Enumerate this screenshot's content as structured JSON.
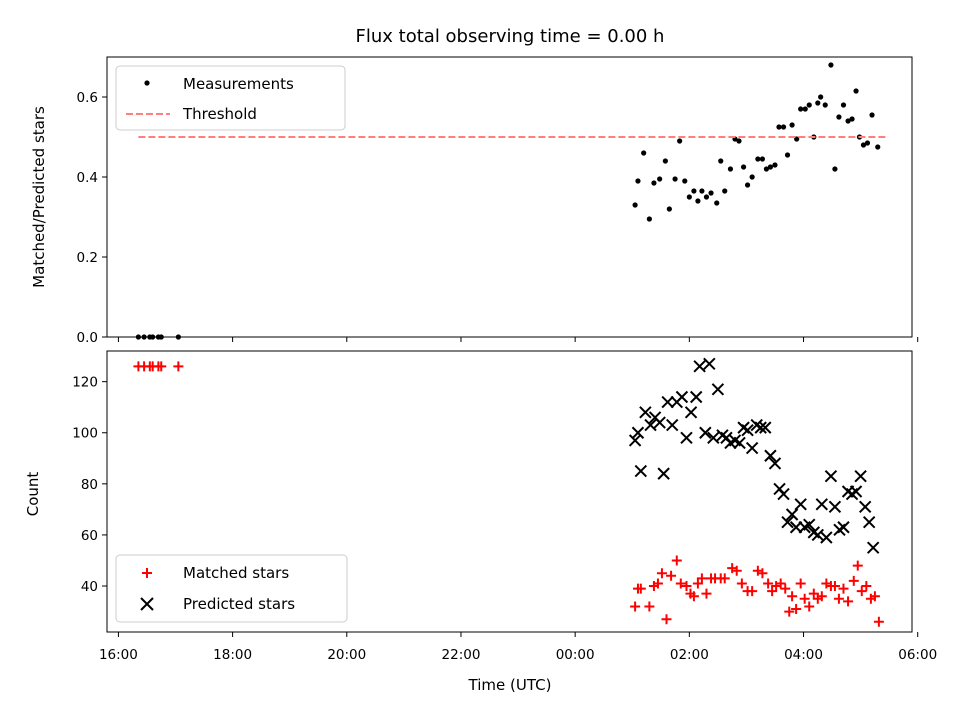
{
  "chart_data": {
    "title": "Flux total observing time = 0.00 h",
    "xlabel": "Time (UTC)",
    "x_tick_labels": [
      "16:00",
      "18:00",
      "20:00",
      "22:00",
      "00:00",
      "02:00",
      "04:00",
      "06:00"
    ],
    "x_range_hours": [
      15.8,
      29.9
    ],
    "panels": [
      {
        "type": "scatter",
        "ylabel": "Matched/Predicted stars",
        "ylim": [
          0.0,
          0.7
        ],
        "yticks": [
          0.0,
          0.2,
          0.4,
          0.6
        ],
        "y_tick_labels": [
          "0.0",
          "0.2",
          "0.4",
          "0.6"
        ],
        "legend_position": "upper-left",
        "series": [
          {
            "name": "Measurements",
            "marker": "dot",
            "color": "#000000",
            "points": [
              [
                16.35,
                0.0
              ],
              [
                16.45,
                0.0
              ],
              [
                16.55,
                0.0
              ],
              [
                16.6,
                0.0
              ],
              [
                16.7,
                0.0
              ],
              [
                16.75,
                0.0
              ],
              [
                17.05,
                0.0
              ],
              [
                25.05,
                0.33
              ],
              [
                25.1,
                0.39
              ],
              [
                25.2,
                0.46
              ],
              [
                25.3,
                0.295
              ],
              [
                25.38,
                0.385
              ],
              [
                25.48,
                0.395
              ],
              [
                25.58,
                0.44
              ],
              [
                25.65,
                0.32
              ],
              [
                25.75,
                0.395
              ],
              [
                25.83,
                0.49
              ],
              [
                25.92,
                0.39
              ],
              [
                26.0,
                0.35
              ],
              [
                26.08,
                0.365
              ],
              [
                26.15,
                0.34
              ],
              [
                26.22,
                0.365
              ],
              [
                26.3,
                0.35
              ],
              [
                26.38,
                0.36
              ],
              [
                26.48,
                0.335
              ],
              [
                26.55,
                0.44
              ],
              [
                26.62,
                0.365
              ],
              [
                26.72,
                0.42
              ],
              [
                26.8,
                0.495
              ],
              [
                26.87,
                0.49
              ],
              [
                26.95,
                0.425
              ],
              [
                27.02,
                0.38
              ],
              [
                27.1,
                0.4
              ],
              [
                27.2,
                0.445
              ],
              [
                27.28,
                0.445
              ],
              [
                27.35,
                0.42
              ],
              [
                27.42,
                0.425
              ],
              [
                27.5,
                0.43
              ],
              [
                27.57,
                0.525
              ],
              [
                27.65,
                0.525
              ],
              [
                27.72,
                0.455
              ],
              [
                27.8,
                0.53
              ],
              [
                27.88,
                0.495
              ],
              [
                27.95,
                0.57
              ],
              [
                28.03,
                0.57
              ],
              [
                28.1,
                0.58
              ],
              [
                28.18,
                0.5
              ],
              [
                28.25,
                0.585
              ],
              [
                28.3,
                0.6
              ],
              [
                28.38,
                0.58
              ],
              [
                28.48,
                0.68
              ],
              [
                28.55,
                0.42
              ],
              [
                28.62,
                0.55
              ],
              [
                28.7,
                0.58
              ],
              [
                28.78,
                0.54
              ],
              [
                28.85,
                0.545
              ],
              [
                28.92,
                0.615
              ],
              [
                28.98,
                0.5
              ],
              [
                29.05,
                0.48
              ],
              [
                29.12,
                0.485
              ],
              [
                29.2,
                0.555
              ],
              [
                29.3,
                0.475
              ]
            ]
          },
          {
            "name": "Threshold",
            "line_style": "dashed",
            "color": "#ff7f7f",
            "x": [
              16.35,
              29.45
            ],
            "y": [
              0.5,
              0.5
            ]
          }
        ]
      },
      {
        "type": "scatter",
        "ylabel": "Count",
        "ylim": [
          22,
          132
        ],
        "yticks": [
          40,
          60,
          80,
          100,
          120
        ],
        "y_tick_labels": [
          "40",
          "60",
          "80",
          "100",
          "120"
        ],
        "legend_position": "lower-left",
        "series": [
          {
            "name": "Matched stars",
            "marker": "plus",
            "color": "#ff0000",
            "points": [
              [
                16.35,
                126
              ],
              [
                16.45,
                126
              ],
              [
                16.55,
                126
              ],
              [
                16.6,
                126
              ],
              [
                16.7,
                126
              ],
              [
                16.75,
                126
              ],
              [
                17.05,
                126
              ],
              [
                25.05,
                32
              ],
              [
                25.1,
                39
              ],
              [
                25.15,
                39
              ],
              [
                25.3,
                32
              ],
              [
                25.38,
                40
              ],
              [
                25.45,
                41
              ],
              [
                25.52,
                45
              ],
              [
                25.6,
                27
              ],
              [
                25.68,
                44
              ],
              [
                25.78,
                50
              ],
              [
                25.85,
                41
              ],
              [
                25.95,
                40
              ],
              [
                26.02,
                37
              ],
              [
                26.08,
                36
              ],
              [
                26.15,
                41
              ],
              [
                26.22,
                43
              ],
              [
                26.3,
                37
              ],
              [
                26.38,
                43
              ],
              [
                26.45,
                43
              ],
              [
                26.55,
                43
              ],
              [
                26.62,
                43
              ],
              [
                26.75,
                47
              ],
              [
                26.83,
                46
              ],
              [
                26.92,
                41
              ],
              [
                27.02,
                38
              ],
              [
                27.1,
                38
              ],
              [
                27.2,
                46
              ],
              [
                27.28,
                45
              ],
              [
                27.38,
                41
              ],
              [
                27.45,
                38
              ],
              [
                27.52,
                40
              ],
              [
                27.6,
                41
              ],
              [
                27.68,
                39
              ],
              [
                27.75,
                30
              ],
              [
                27.8,
                36
              ],
              [
                27.87,
                31
              ],
              [
                27.95,
                41
              ],
              [
                28.02,
                35
              ],
              [
                28.1,
                32
              ],
              [
                28.18,
                37
              ],
              [
                28.25,
                35
              ],
              [
                28.32,
                36
              ],
              [
                28.4,
                41
              ],
              [
                28.48,
                40
              ],
              [
                28.55,
                40
              ],
              [
                28.62,
                35
              ],
              [
                28.7,
                39
              ],
              [
                28.78,
                34
              ],
              [
                28.88,
                42
              ],
              [
                28.95,
                48
              ],
              [
                29.02,
                38
              ],
              [
                29.1,
                40
              ],
              [
                29.18,
                35
              ],
              [
                29.25,
                36
              ],
              [
                29.32,
                26
              ]
            ]
          },
          {
            "name": "Predicted stars",
            "marker": "cross",
            "color": "#000000",
            "points": [
              [
                25.05,
                97
              ],
              [
                25.1,
                100
              ],
              [
                25.15,
                85
              ],
              [
                25.23,
                108
              ],
              [
                25.32,
                103
              ],
              [
                25.4,
                106
              ],
              [
                25.48,
                104
              ],
              [
                25.55,
                84
              ],
              [
                25.62,
                112
              ],
              [
                25.7,
                103
              ],
              [
                25.78,
                112
              ],
              [
                25.87,
                114
              ],
              [
                25.95,
                98
              ],
              [
                26.03,
                108
              ],
              [
                26.12,
                114
              ],
              [
                26.18,
                126
              ],
              [
                26.28,
                100
              ],
              [
                26.35,
                127
              ],
              [
                26.42,
                98
              ],
              [
                26.5,
                117
              ],
              [
                26.58,
                99
              ],
              [
                26.65,
                98
              ],
              [
                26.72,
                96
              ],
              [
                26.8,
                97
              ],
              [
                26.88,
                96
              ],
              [
                26.95,
                102
              ],
              [
                27.02,
                101
              ],
              [
                27.1,
                94
              ],
              [
                27.18,
                103
              ],
              [
                27.25,
                102
              ],
              [
                27.33,
                102
              ],
              [
                27.42,
                91
              ],
              [
                27.5,
                88
              ],
              [
                27.58,
                78
              ],
              [
                27.65,
                76
              ],
              [
                27.72,
                65
              ],
              [
                27.8,
                68
              ],
              [
                27.87,
                63
              ],
              [
                27.95,
                72
              ],
              [
                28.02,
                63
              ],
              [
                28.1,
                64
              ],
              [
                28.18,
                61
              ],
              [
                28.25,
                60
              ],
              [
                28.32,
                72
              ],
              [
                28.4,
                59
              ],
              [
                28.48,
                83
              ],
              [
                28.55,
                71
              ],
              [
                28.63,
                62
              ],
              [
                28.7,
                63
              ],
              [
                28.78,
                77
              ],
              [
                28.85,
                76
              ],
              [
                28.92,
                77
              ],
              [
                29.0,
                83
              ],
              [
                29.08,
                71
              ],
              [
                29.15,
                65
              ],
              [
                29.22,
                55
              ]
            ]
          }
        ]
      }
    ]
  }
}
